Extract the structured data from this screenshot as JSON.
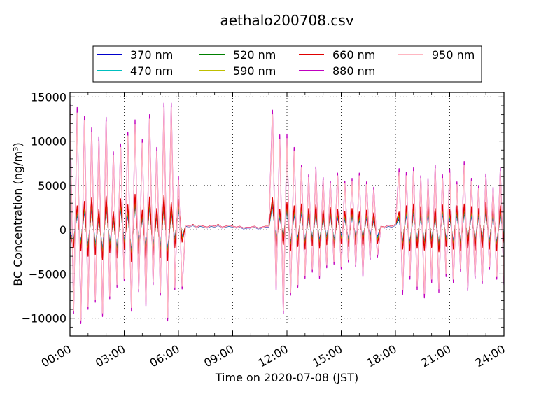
{
  "chart_data": {
    "type": "line",
    "title": "aethalo200708.csv",
    "xlabel": "Time on 2020-07-08 (JST)",
    "ylabel": "BC Concentration (ng/m³)",
    "xlim": [
      "00:00",
      "24:00"
    ],
    "ylim": [
      -12000,
      15500
    ],
    "x_ticks": [
      "00:00",
      "03:00",
      "06:00",
      "09:00",
      "12:00",
      "15:00",
      "18:00",
      "21:00",
      "24:00"
    ],
    "y_ticks": [
      -10000,
      -5000,
      0,
      5000,
      10000,
      15000
    ],
    "y_tick_labels": [
      "−10000",
      "−5000",
      "0",
      "5000",
      "10000",
      "15000"
    ],
    "grid": true,
    "legend_position": "top, above the plot",
    "x_hours": [
      0.0,
      0.2,
      0.4,
      0.6,
      0.8,
      1.0,
      1.2,
      1.4,
      1.6,
      1.8,
      2.0,
      2.2,
      2.4,
      2.6,
      2.8,
      3.0,
      3.2,
      3.4,
      3.6,
      3.8,
      4.0,
      4.2,
      4.4,
      4.6,
      4.8,
      5.0,
      5.2,
      5.4,
      5.6,
      5.8,
      6.0,
      6.2,
      6.4,
      6.6,
      6.8,
      7.0,
      7.2,
      7.4,
      7.6,
      7.8,
      8.0,
      8.2,
      8.4,
      8.6,
      8.8,
      9.0,
      9.2,
      9.4,
      9.6,
      9.8,
      10.0,
      10.2,
      10.4,
      10.6,
      10.8,
      11.0,
      11.2,
      11.4,
      11.6,
      11.8,
      12.0,
      12.2,
      12.4,
      12.6,
      12.8,
      13.0,
      13.2,
      13.4,
      13.6,
      13.8,
      14.0,
      14.2,
      14.4,
      14.6,
      14.8,
      15.0,
      15.2,
      15.4,
      15.6,
      15.8,
      16.0,
      16.2,
      16.4,
      16.6,
      16.8,
      17.0,
      17.2,
      17.4,
      17.6,
      17.8,
      18.0,
      18.2,
      18.4,
      18.6,
      18.8,
      19.0,
      19.2,
      19.4,
      19.6,
      19.8,
      20.0,
      20.2,
      20.4,
      20.6,
      20.8,
      21.0,
      21.2,
      21.4,
      21.6,
      21.8,
      22.0,
      22.2,
      22.4,
      22.6,
      22.8,
      23.0,
      23.2,
      23.4,
      23.6,
      23.8,
      24.0
    ],
    "series": [
      {
        "name": "370 nm",
        "color": "#0000cc",
        "values": [
          -300,
          -1200,
          1800,
          -1500,
          2200,
          -2000,
          2600,
          -1800,
          1500,
          -2400,
          2800,
          -1600,
          1200,
          -2200,
          2500,
          -1400,
          1800,
          -2600,
          3000,
          -1700,
          1400,
          -2300,
          2700,
          -1900,
          1600,
          -2100,
          2900,
          -2500,
          2100,
          -1200,
          2400,
          -800,
          400,
          300,
          500,
          200,
          400,
          300,
          200,
          400,
          300,
          500,
          200,
          300,
          400,
          300,
          200,
          300,
          100,
          200,
          200,
          300,
          100,
          200,
          300,
          300,
          2800,
          -1200,
          1500,
          -900,
          2200,
          -1600,
          1800,
          -1100,
          2000,
          -1400,
          1600,
          -1000,
          1900,
          -1300,
          1400,
          -900,
          1700,
          -1200,
          1500,
          -800,
          1300,
          -1100,
          1600,
          -900,
          1200,
          -1000,
          1400,
          -700,
          1100,
          -800,
          300,
          200,
          400,
          300,
          500,
          1200,
          -1400,
          1800,
          -1600,
          2000,
          -1300,
          1700,
          -1500,
          2100,
          -1200,
          1600,
          -1700,
          1900,
          -1100,
          1500,
          -1400,
          1800,
          -1600,
          2000,
          -1300,
          1700,
          -1500,
          1600,
          -1200,
          2200,
          -1400,
          1900,
          -1600,
          1800,
          -900
        ]
      },
      {
        "name": "470 nm",
        "color": "#00bfbf",
        "values": [
          -400,
          -1400,
          2000,
          -1700,
          2400,
          -2200,
          2800,
          -2000,
          1700,
          -2600,
          3000,
          -1800,
          1400,
          -2400,
          2700,
          -1600,
          2000,
          -2800,
          3200,
          -1900,
          1600,
          -2500,
          2900,
          -2100,
          1800,
          -2300,
          3100,
          -2700,
          2300,
          -1400,
          2600,
          -900,
          450,
          320,
          520,
          230,
          430,
          330,
          230,
          430,
          330,
          530,
          230,
          330,
          430,
          330,
          230,
          330,
          130,
          230,
          230,
          330,
          130,
          230,
          330,
          330,
          3000,
          -1400,
          1700,
          -1100,
          2400,
          -1800,
          2000,
          -1300,
          2200,
          -1600,
          1800,
          -1200,
          2100,
          -1500,
          1600,
          -1100,
          1900,
          -1400,
          1700,
          -1000,
          1500,
          -1300,
          1800,
          -1100,
          1400,
          -1200,
          1600,
          -900,
          1300,
          -1000,
          330,
          230,
          430,
          330,
          530,
          1400,
          -1600,
          2000,
          -1800,
          2200,
          -1500,
          1900,
          -1700,
          2300,
          -1400,
          1800,
          -1900,
          2100,
          -1300,
          1700,
          -1600,
          2000,
          -1800,
          2200,
          -1500,
          1900,
          -1700,
          1800,
          -1400,
          2400,
          -1600,
          2100,
          -1800,
          2000,
          -1000
        ]
      },
      {
        "name": "520 nm",
        "color": "#008000",
        "values": [
          -500,
          -1600,
          2300,
          -1900,
          2700,
          -2500,
          3100,
          -2300,
          1900,
          -2900,
          3300,
          -2100,
          1600,
          -2700,
          3000,
          -1800,
          2300,
          -3100,
          3500,
          -2200,
          1800,
          -2800,
          3200,
          -2400,
          2000,
          -2600,
          3400,
          -3000,
          2600,
          -1600,
          2900,
          -1100,
          480,
          340,
          560,
          250,
          460,
          350,
          250,
          460,
          350,
          560,
          250,
          350,
          460,
          350,
          250,
          350,
          150,
          250,
          250,
          350,
          150,
          250,
          350,
          350,
          3300,
          -1600,
          1900,
          -1300,
          2700,
          -2000,
          2300,
          -1500,
          2500,
          -1800,
          2000,
          -1400,
          2400,
          -1700,
          1800,
          -1300,
          2100,
          -1600,
          1900,
          -1200,
          1700,
          -1500,
          2000,
          -1300,
          1600,
          -1400,
          1800,
          -1100,
          1500,
          -1200,
          350,
          250,
          460,
          350,
          560,
          1600,
          -1800,
          2300,
          -2000,
          2500,
          -1700,
          2200,
          -1900,
          2600,
          -1600,
          2000,
          -2100,
          2400,
          -1500,
          1900,
          -1800,
          2300,
          -2000,
          2500,
          -1700,
          2200,
          -1900,
          2000,
          -1600,
          2700,
          -1800,
          2400,
          -2000,
          2300,
          -1200
        ]
      },
      {
        "name": "590 nm",
        "color": "#bfbf00",
        "values": [
          -550,
          -1700,
          2400,
          -2000,
          2800,
          -2600,
          3200,
          -2400,
          2000,
          -3000,
          3400,
          -2200,
          1700,
          -2800,
          3100,
          -1900,
          2400,
          -3200,
          3600,
          -2300,
          1900,
          -2900,
          3300,
          -2500,
          2100,
          -2700,
          3500,
          -3100,
          2700,
          -1700,
          3000,
          -1200,
          500,
          350,
          580,
          260,
          480,
          360,
          260,
          480,
          360,
          580,
          260,
          360,
          480,
          360,
          260,
          360,
          160,
          260,
          260,
          360,
          160,
          260,
          360,
          360,
          3400,
          -1700,
          2000,
          -1400,
          2800,
          -2100,
          2400,
          -1600,
          2600,
          -1900,
          2100,
          -1500,
          2500,
          -1800,
          1900,
          -1400,
          2200,
          -1700,
          2000,
          -1300,
          1800,
          -1600,
          2100,
          -1400,
          1700,
          -1500,
          1900,
          -1200,
          1600,
          -1300,
          360,
          260,
          480,
          360,
          580,
          1700,
          -1900,
          2400,
          -2100,
          2600,
          -1800,
          2300,
          -2000,
          2700,
          -1700,
          2100,
          -2200,
          2500,
          -1600,
          2000,
          -1900,
          2400,
          -2100,
          2600,
          -1800,
          2300,
          -2000,
          2100,
          -1700,
          2800,
          -1900,
          2500,
          -2100,
          2400,
          -1300
        ]
      },
      {
        "name": "660 nm",
        "color": "#e00000",
        "values": [
          -600,
          -2000,
          2700,
          -2400,
          3200,
          -3000,
          3600,
          -2800,
          2300,
          -3400,
          3800,
          -2600,
          2000,
          -3200,
          3500,
          -2200,
          2800,
          -3600,
          4000,
          -2700,
          2200,
          -3300,
          3700,
          -2900,
          2400,
          -3100,
          3900,
          -3500,
          3100,
          -2000,
          3400,
          -1400,
          520,
          370,
          600,
          280,
          500,
          380,
          280,
          500,
          380,
          600,
          280,
          380,
          500,
          380,
          280,
          380,
          180,
          280,
          280,
          380,
          180,
          280,
          380,
          380,
          3600,
          -2000,
          2300,
          -1700,
          3100,
          -2400,
          2700,
          -1900,
          2900,
          -2200,
          2400,
          -1800,
          2800,
          -2100,
          2200,
          -1700,
          2500,
          -2000,
          2300,
          -1600,
          2100,
          -1900,
          2400,
          -1700,
          2000,
          -1800,
          2200,
          -1500,
          1900,
          -1600,
          380,
          280,
          500,
          380,
          600,
          2000,
          -2200,
          2700,
          -2400,
          2900,
          -2100,
          2600,
          -2300,
          3000,
          -2000,
          2400,
          -2500,
          2800,
          -1900,
          2300,
          -2200,
          2700,
          -2400,
          2900,
          -2100,
          2600,
          -2300,
          2400,
          -2000,
          3100,
          -2200,
          2800,
          -2400,
          2700,
          -1500
        ]
      },
      {
        "name": "880 nm",
        "color": "#c000c0",
        "values": [
          14200,
          -9500,
          13800,
          -10600,
          12800,
          -9000,
          11500,
          -8200,
          10500,
          -9800,
          12700,
          -7800,
          8800,
          -6500,
          9700,
          -5800,
          11000,
          -9200,
          12400,
          -7000,
          10200,
          -8600,
          13000,
          -6200,
          9300,
          -7400,
          14300,
          -10300,
          14300,
          -6800,
          6000,
          -6700,
          500,
          350,
          560,
          260,
          480,
          360,
          260,
          480,
          360,
          560,
          260,
          360,
          480,
          360,
          260,
          360,
          160,
          260,
          260,
          360,
          160,
          260,
          360,
          360,
          13500,
          -6800,
          10700,
          -9500,
          10800,
          -7400,
          9300,
          -6500,
          7300,
          -5500,
          6200,
          -4800,
          7100,
          -5500,
          5900,
          -4300,
          5500,
          -3900,
          6400,
          -4500,
          5500,
          -3700,
          5800,
          -4200,
          6400,
          -5300,
          5400,
          -3400,
          4800,
          -3100,
          350,
          250,
          480,
          350,
          560,
          6900,
          -7300,
          6500,
          -5600,
          7000,
          -6800,
          6100,
          -7700,
          5800,
          -6000,
          7300,
          -7100,
          6200,
          -5300,
          6800,
          -6000,
          5400,
          -4700,
          7700,
          -6900,
          5800,
          -5500,
          5000,
          -6100,
          6300,
          -4500,
          4800,
          -5600,
          7000,
          -6200
        ]
      },
      {
        "name": "950 nm",
        "color": "#ffb6c1",
        "values": [
          13800,
          -9200,
          13200,
          -10200,
          12300,
          -8700,
          11000,
          -7900,
          10000,
          -9400,
          12200,
          -7500,
          8400,
          -6200,
          9300,
          -5500,
          10600,
          -8800,
          11900,
          -6700,
          9800,
          -8300,
          12500,
          -5900,
          8900,
          -7100,
          13800,
          -9900,
          13800,
          -6500,
          5600,
          -6400,
          480,
          330,
          540,
          240,
          460,
          340,
          240,
          460,
          340,
          540,
          240,
          340,
          460,
          340,
          240,
          340,
          140,
          240,
          240,
          340,
          140,
          240,
          340,
          340,
          13000,
          -6500,
          10200,
          -9100,
          10300,
          -7100,
          8900,
          -6200,
          7000,
          -5200,
          5900,
          -4500,
          6800,
          -5200,
          5600,
          -4000,
          5200,
          -3600,
          6100,
          -4200,
          5200,
          -3400,
          5500,
          -3900,
          6100,
          -5000,
          5100,
          -3100,
          4500,
          -2800,
          340,
          240,
          460,
          340,
          540,
          6500,
          -6800,
          6100,
          -5200,
          6600,
          -6400,
          5800,
          -7200,
          5500,
          -5600,
          6900,
          -6700,
          5800,
          -5000,
          6400,
          -5600,
          5100,
          -4400,
          7300,
          -6500,
          5500,
          -5200,
          4700,
          -5800,
          5900,
          -4200,
          4500,
          -5300,
          6600,
          -5900
        ]
      }
    ]
  }
}
